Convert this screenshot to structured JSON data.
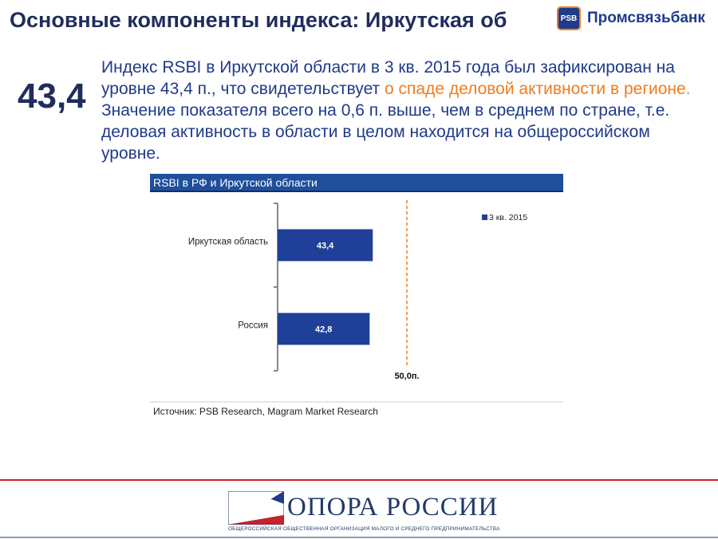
{
  "header": {
    "title": "Основные компоненты индекса: Иркутская об",
    "bank_name": "Промсвязьбанк",
    "bank_mark": "PSB"
  },
  "summary": {
    "value": "43,4",
    "text_before": "Индекс RSBI в Иркутской области в 3 кв. 2015 года был зафиксирован на уровне 43,4 п., что свидетельствует ",
    "highlight": "о спаде деловой активности в регионе.",
    "text_after": " Значение показателя всего на 0,6 п. выше, чем в среднем по стране, т.е. деловая активность в области в целом находится на общероссийском уровне."
  },
  "chart_data": {
    "type": "bar",
    "orientation": "horizontal",
    "title": "RSBI в РФ и Иркутской области",
    "categories": [
      "Иркутская область",
      "Россия"
    ],
    "series": [
      {
        "name": "3 кв. 2015",
        "values": [
          43.4,
          42.8
        ],
        "value_labels": [
          "43,4",
          "42,8"
        ],
        "color": "#1f3f99"
      }
    ],
    "reference_line": {
      "value": 50,
      "label": "50,0п.",
      "color": "#f07c1e"
    },
    "xlim": [
      25,
      55
    ],
    "legend_position": "top-right",
    "grid": false,
    "source": "Источник: PSB Research, Magram Market Research"
  },
  "footer": {
    "org_name": "ОПОРА РОССИИ",
    "org_subtitle": "ОБЩЕРОССИЙСКАЯ ОБЩЕСТВЕННАЯ ОРГАНИЗАЦИЯ МАЛОГО И СРЕДНЕГО ПРЕДПРИНИМАТЕЛЬСТВА",
    "line_color": "#c8222b"
  }
}
